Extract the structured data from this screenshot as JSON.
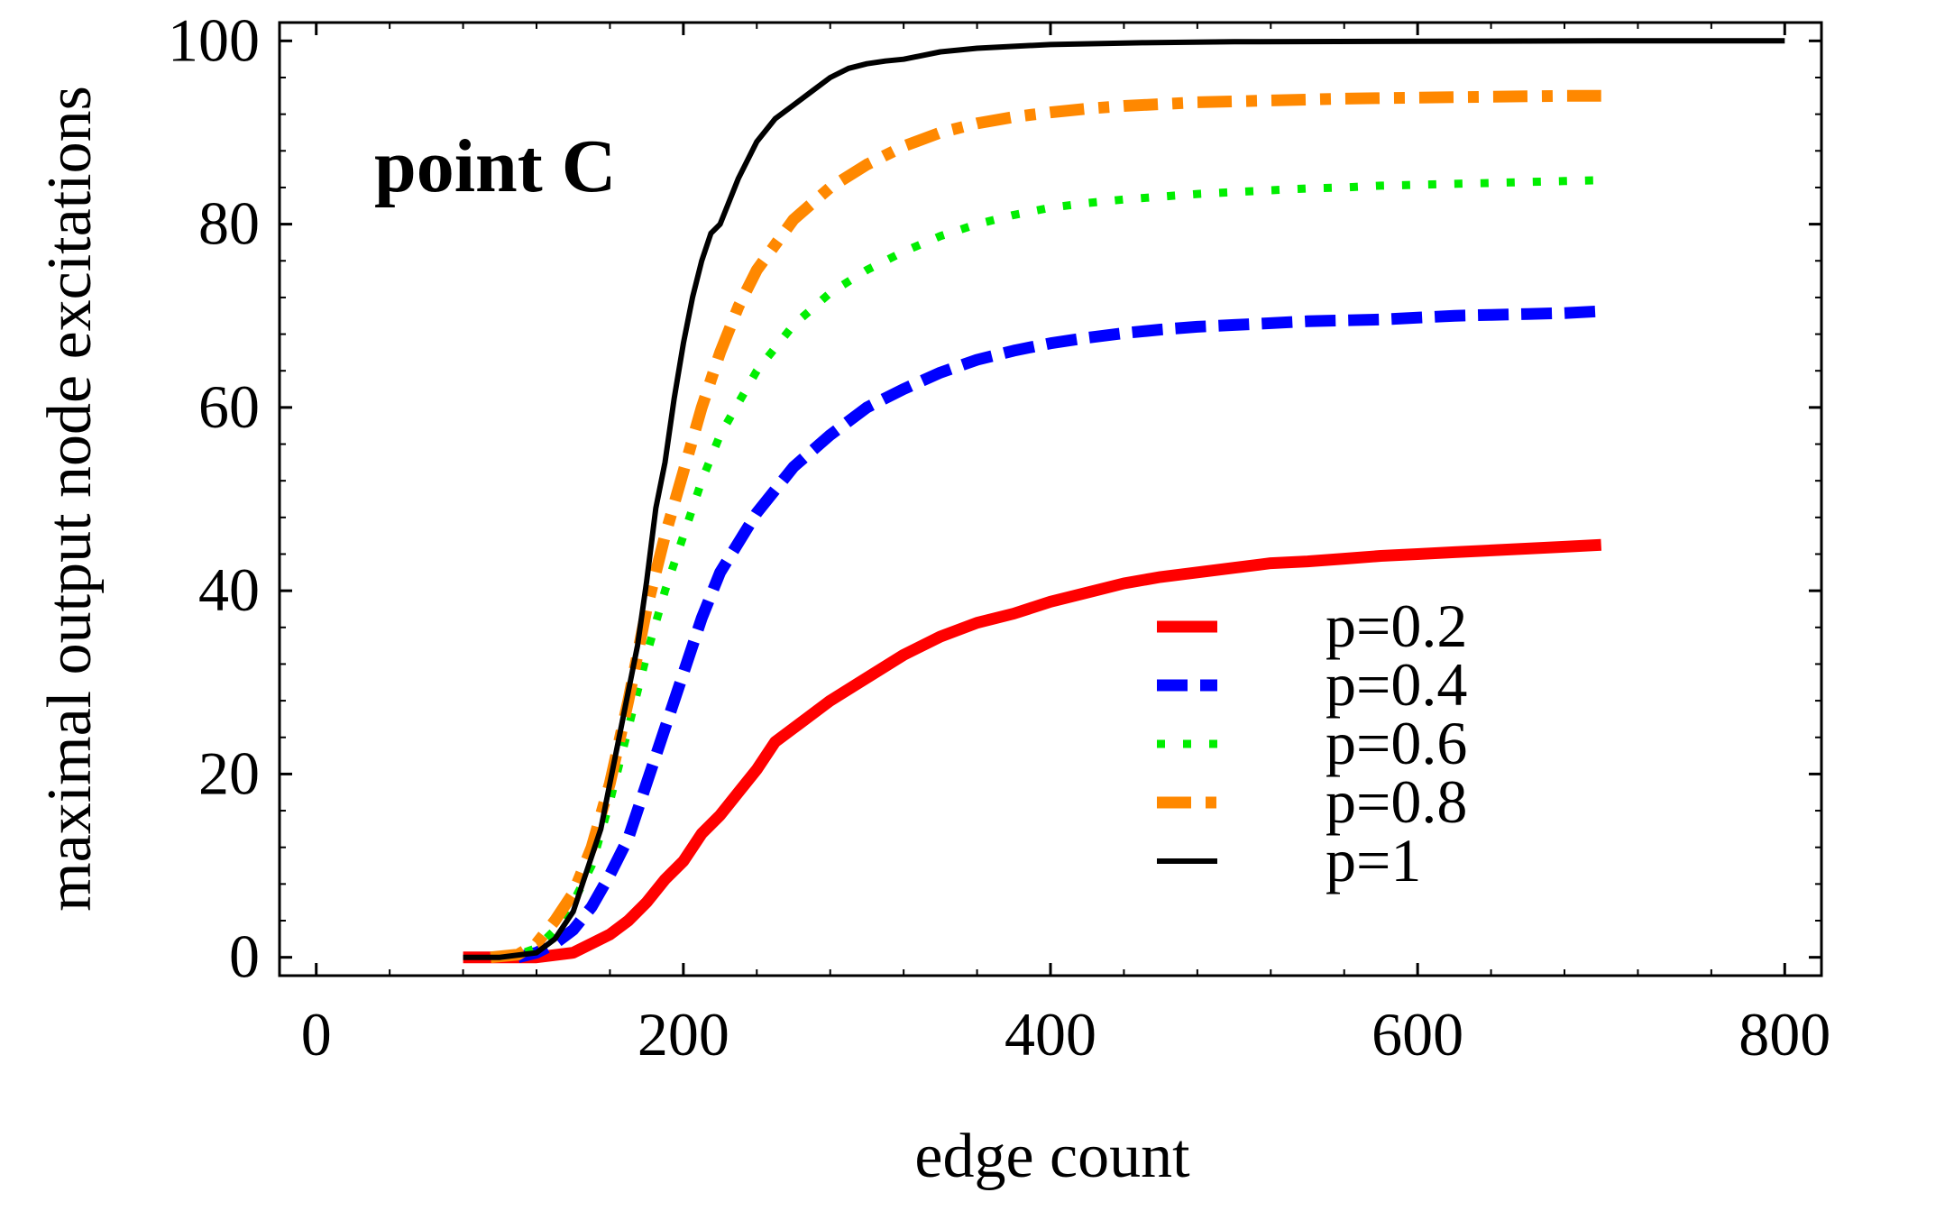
{
  "chart_data": {
    "type": "line",
    "title": "",
    "annotation": "point C",
    "xlabel": "edge count",
    "ylabel": "maximal output node excitations",
    "xlim": [
      -20,
      820
    ],
    "ylim": [
      -2,
      102
    ],
    "xticks": [
      0,
      200,
      400,
      600,
      800
    ],
    "yticks": [
      0,
      20,
      40,
      60,
      80,
      100
    ],
    "xtick_labels": [
      "0",
      "200",
      "400",
      "600",
      "800"
    ],
    "ytick_labels": [
      "0",
      "20",
      "40",
      "60",
      "80",
      "100"
    ],
    "grid": false,
    "legend_position": "lower-right",
    "series": [
      {
        "name": "p=0.2",
        "color": "#ff0000",
        "style": "solid-thick",
        "x": [
          80,
          100,
          120,
          140,
          150,
          160,
          170,
          180,
          190,
          200,
          210,
          220,
          230,
          240,
          250,
          260,
          270,
          280,
          300,
          320,
          340,
          360,
          380,
          400,
          420,
          440,
          460,
          480,
          500,
          520,
          540,
          560,
          580,
          600,
          620,
          640,
          660,
          680,
          700
        ],
        "y": [
          0,
          0,
          0,
          0.5,
          1.5,
          2.5,
          4,
          6,
          8.5,
          10.5,
          13.5,
          15.5,
          18,
          20.5,
          23.5,
          25,
          26.5,
          28,
          30.5,
          33,
          35,
          36.5,
          37.5,
          38.8,
          39.8,
          40.8,
          41.5,
          42,
          42.5,
          43,
          43.2,
          43.5,
          43.8,
          44,
          44.2,
          44.4,
          44.6,
          44.8,
          45
        ]
      },
      {
        "name": "p=0.4",
        "color": "#0000ff",
        "style": "dashed",
        "x": [
          110,
          120,
          130,
          140,
          150,
          160,
          170,
          180,
          190,
          200,
          210,
          220,
          240,
          260,
          280,
          300,
          320,
          340,
          360,
          380,
          400,
          420,
          440,
          460,
          480,
          500,
          520,
          540,
          560,
          580,
          600,
          620,
          640,
          660,
          680,
          700
        ],
        "y": [
          0,
          0.5,
          1.5,
          3,
          5.5,
          9,
          13,
          19,
          25,
          31,
          37,
          42,
          48.5,
          53.5,
          57,
          60,
          62,
          63.8,
          65.2,
          66.2,
          67,
          67.6,
          68.1,
          68.5,
          68.8,
          69,
          69.2,
          69.4,
          69.5,
          69.6,
          69.8,
          70,
          70.1,
          70.2,
          70.3,
          70.5
        ]
      },
      {
        "name": "p=0.6",
        "color": "#00ee00",
        "style": "dotted",
        "x": [
          100,
          110,
          120,
          130,
          140,
          150,
          160,
          170,
          180,
          190,
          200,
          210,
          220,
          240,
          260,
          280,
          300,
          320,
          340,
          360,
          380,
          400,
          420,
          440,
          460,
          480,
          500,
          520,
          540,
          560,
          580,
          600,
          620,
          640,
          660,
          680,
          700
        ],
        "y": [
          0,
          0.3,
          1,
          3,
          6,
          10,
          17,
          25,
          33,
          40,
          46,
          52,
          57,
          64,
          69,
          72.5,
          75,
          77,
          78.7,
          80,
          81,
          81.8,
          82.3,
          82.7,
          83,
          83.3,
          83.5,
          83.7,
          83.9,
          84,
          84.2,
          84.3,
          84.4,
          84.5,
          84.6,
          84.7,
          84.8
        ]
      },
      {
        "name": "p=0.8",
        "color": "#ff8800",
        "style": "dash-dot",
        "x": [
          95,
          110,
          120,
          130,
          140,
          150,
          160,
          170,
          180,
          190,
          200,
          210,
          220,
          230,
          240,
          260,
          280,
          300,
          320,
          340,
          360,
          380,
          400,
          420,
          440,
          460,
          480,
          500,
          520,
          540,
          560,
          580,
          600,
          620,
          640,
          660,
          680,
          700
        ],
        "y": [
          0,
          0.3,
          1.5,
          4,
          7,
          12,
          19,
          28,
          38,
          46,
          53,
          60,
          66,
          71,
          75,
          80.5,
          84,
          86.5,
          88.5,
          90,
          91,
          91.7,
          92.2,
          92.6,
          92.9,
          93.1,
          93.3,
          93.4,
          93.5,
          93.6,
          93.7,
          93.75,
          93.8,
          93.85,
          93.9,
          93.95,
          94,
          94
        ]
      },
      {
        "name": "p=1",
        "color": "#000000",
        "style": "solid-thin",
        "x": [
          80,
          100,
          120,
          130,
          140,
          145,
          150,
          155,
          160,
          165,
          170,
          175,
          180,
          185,
          190,
          195,
          200,
          205,
          210,
          215,
          220,
          230,
          240,
          250,
          260,
          270,
          280,
          290,
          300,
          310,
          320,
          340,
          360,
          380,
          400,
          450,
          500,
          600,
          700,
          800
        ],
        "y": [
          0,
          0,
          0.5,
          2,
          5,
          8,
          11,
          14,
          19,
          24,
          29,
          34,
          41,
          49,
          54,
          61,
          67,
          72,
          76,
          79,
          80,
          85,
          89,
          91.5,
          93,
          94.5,
          96,
          97,
          97.5,
          97.8,
          98,
          98.8,
          99.2,
          99.4,
          99.6,
          99.8,
          99.9,
          99.95,
          100,
          100
        ]
      }
    ]
  }
}
